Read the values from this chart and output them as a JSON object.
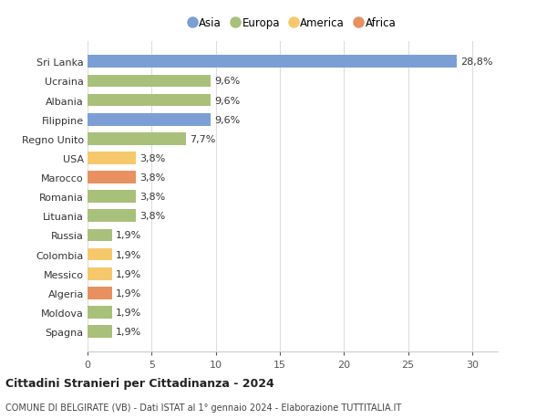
{
  "categories": [
    "Spagna",
    "Moldova",
    "Algeria",
    "Messico",
    "Colombia",
    "Russia",
    "Lituania",
    "Romania",
    "Marocco",
    "USA",
    "Regno Unito",
    "Filippine",
    "Albania",
    "Ucraina",
    "Sri Lanka"
  ],
  "values": [
    1.9,
    1.9,
    1.9,
    1.9,
    1.9,
    1.9,
    3.8,
    3.8,
    3.8,
    3.8,
    7.7,
    9.6,
    9.6,
    9.6,
    28.8
  ],
  "colors": [
    "#a8c07a",
    "#a8c07a",
    "#e89060",
    "#f5c96b",
    "#f5c96b",
    "#a8c07a",
    "#a8c07a",
    "#a8c07a",
    "#e89060",
    "#f5c96b",
    "#a8c07a",
    "#7b9fd4",
    "#a8c07a",
    "#a8c07a",
    "#7b9fd4"
  ],
  "labels": [
    "1,9%",
    "1,9%",
    "1,9%",
    "1,9%",
    "1,9%",
    "1,9%",
    "3,8%",
    "3,8%",
    "3,8%",
    "3,8%",
    "7,7%",
    "9,6%",
    "9,6%",
    "9,6%",
    "28,8%"
  ],
  "xlim": [
    0,
    32
  ],
  "xticks": [
    0,
    5,
    10,
    15,
    20,
    25,
    30
  ],
  "title1": "Cittadini Stranieri per Cittadinanza - 2024",
  "title2": "COMUNE DI BELGIRATE (VB) - Dati ISTAT al 1° gennaio 2024 - Elaborazione TUTTITALIA.IT",
  "legend_labels": [
    "Asia",
    "Europa",
    "America",
    "Africa"
  ],
  "legend_colors": [
    "#7b9fd4",
    "#a8c07a",
    "#f5c96b",
    "#e89060"
  ],
  "bg_color": "#ffffff",
  "bar_height": 0.65,
  "label_fontsize": 8,
  "tick_fontsize": 8
}
